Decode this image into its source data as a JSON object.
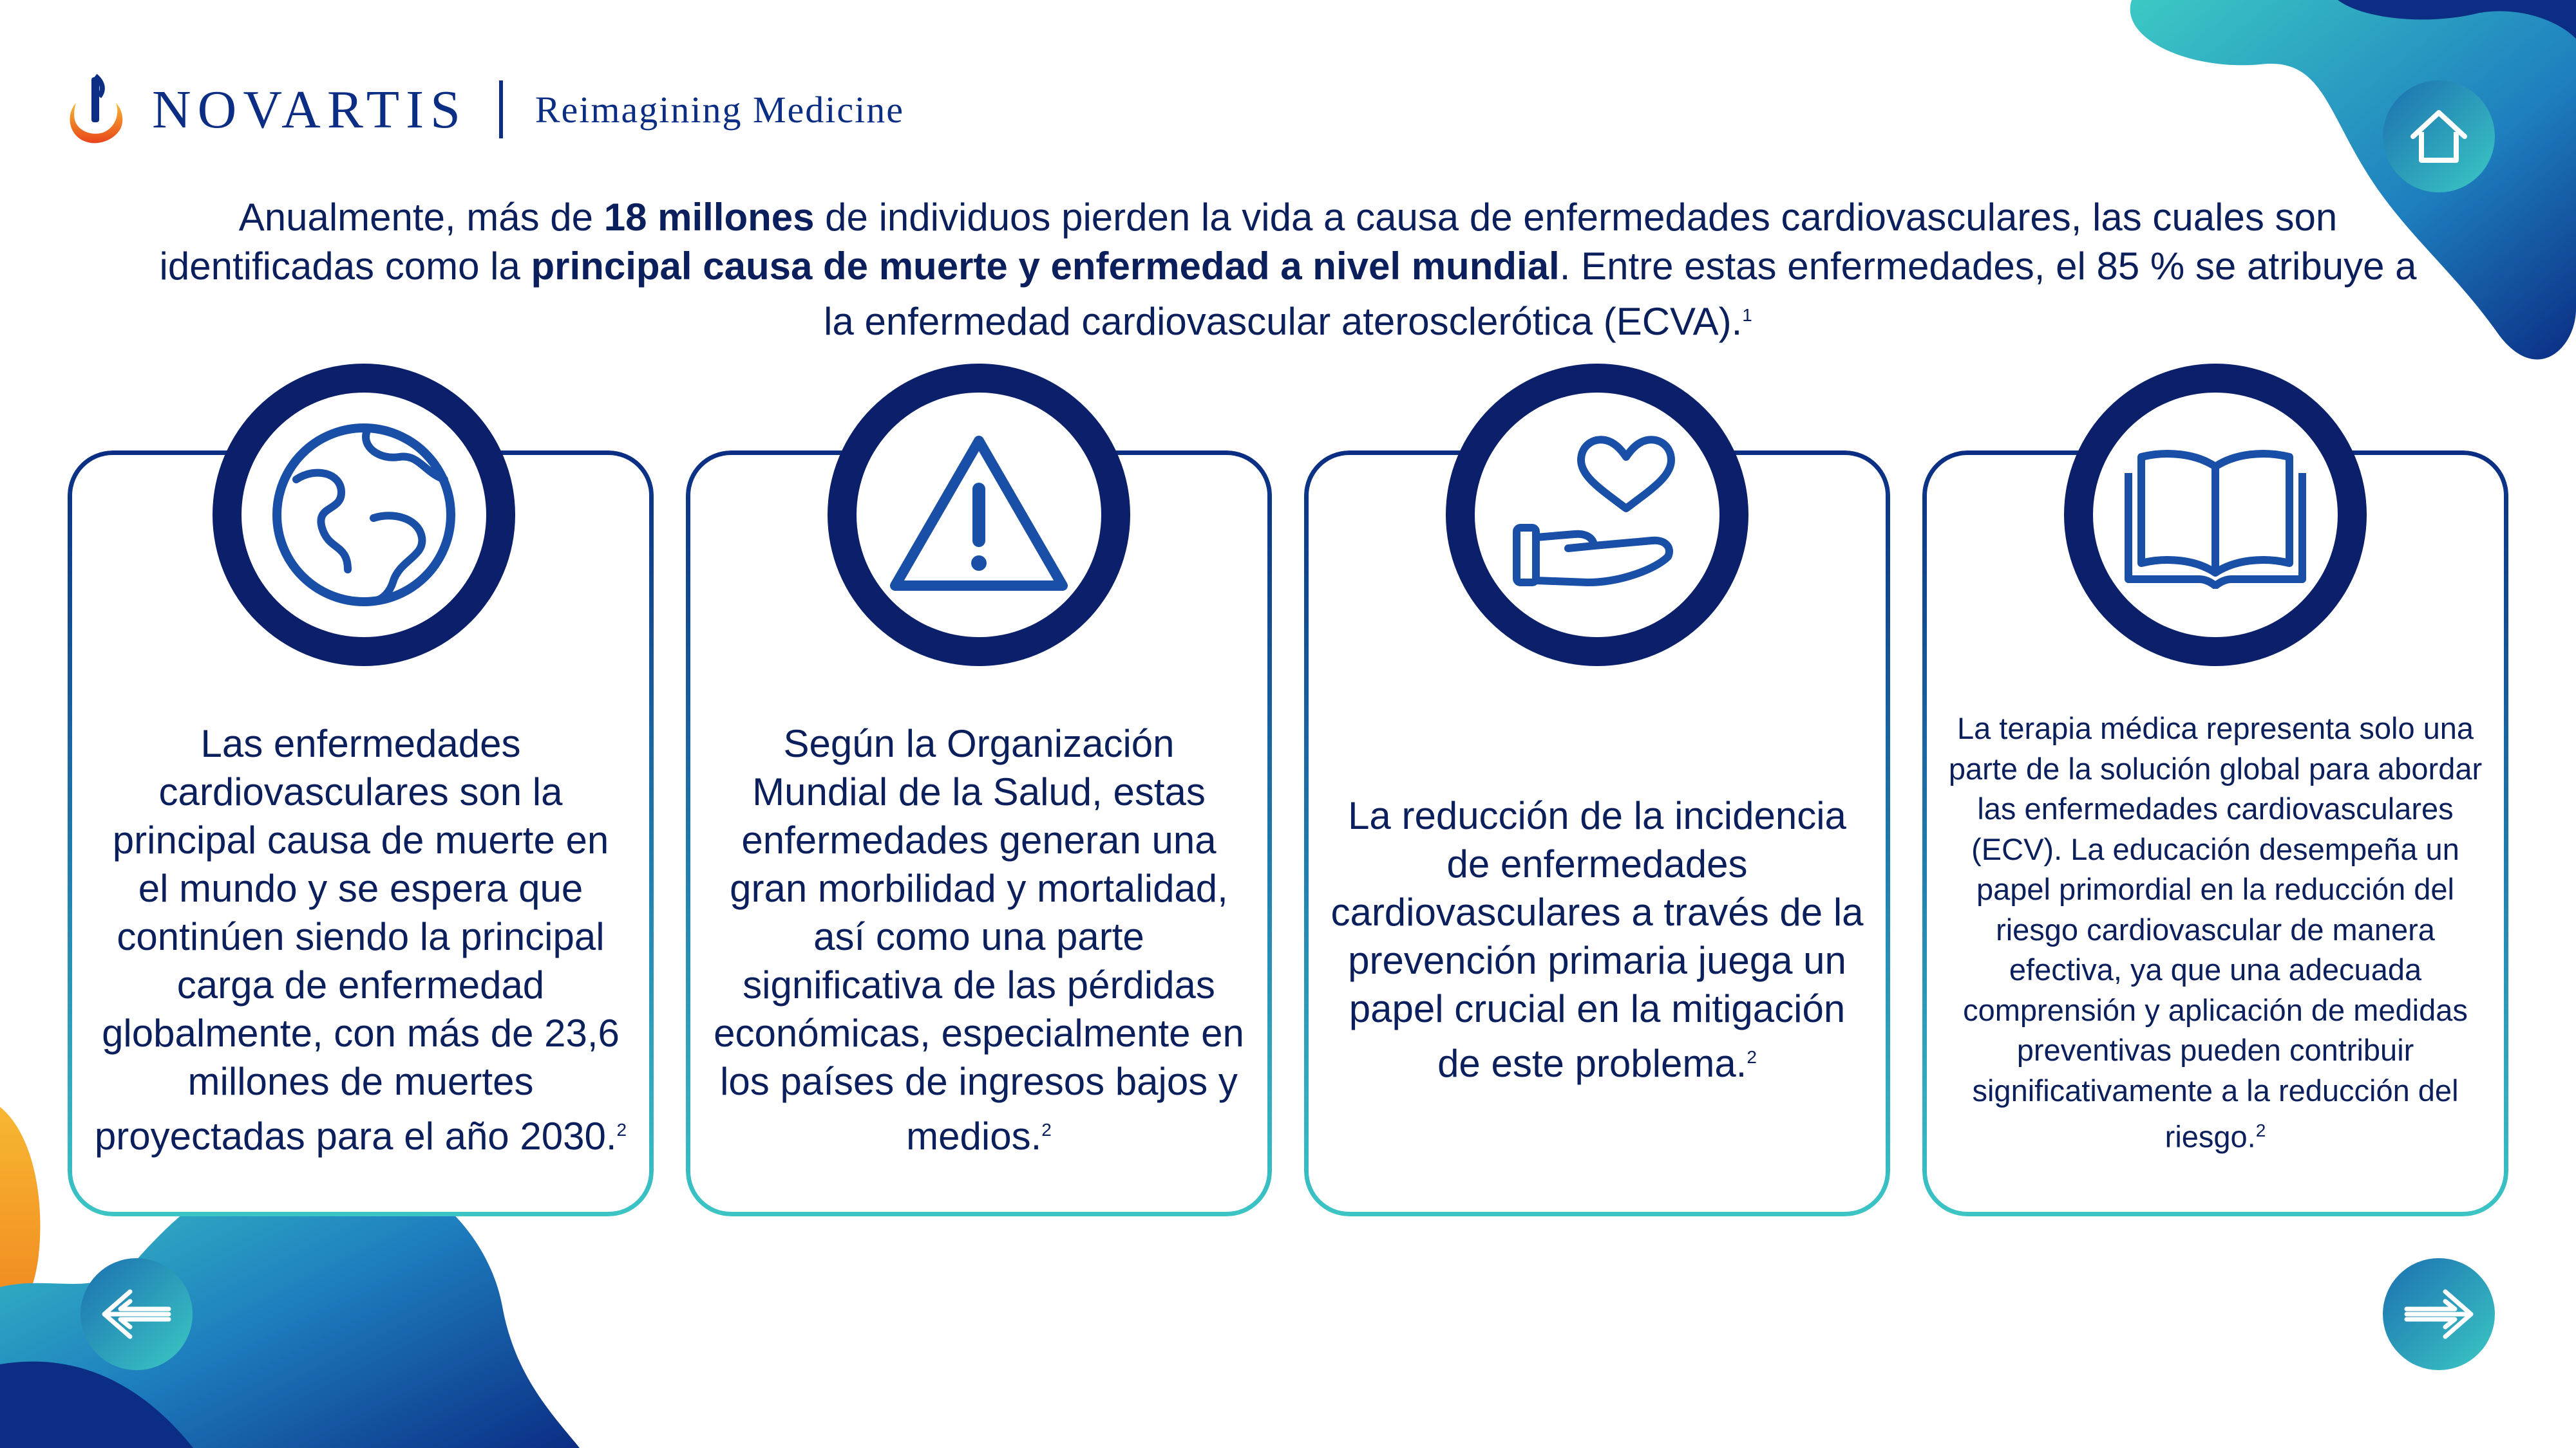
{
  "header": {
    "brand": "NOVARTIS",
    "tagline": "Reimagining Medicine"
  },
  "intro": {
    "p1": "Anualmente, más de ",
    "b1": "18 millones",
    "p2": " de individuos pierden la vida a causa de enfermedades cardiovasculares, las cuales son identificadas como la ",
    "b2": "principal causa de muerte y enfermedad a nivel mundial",
    "p3": ". Entre estas enfermedades, el 85 % se atribuye a la enfermedad cardiovascular aterosclerótica (ECVA).",
    "ref": "1"
  },
  "cards": [
    {
      "icon": "globe-icon",
      "text": "Las enfermedades cardiovasculares son la principal causa de muerte en el mundo y se espera que continúen siendo la principal carga de enfermedad globalmente, con más de 23,6 millones de muertes proyectadas para el año 2030.",
      "ref": "2"
    },
    {
      "icon": "warning-icon",
      "text": "Según la Organización Mundial de la Salud, estas enfermedades generan una gran morbilidad y mortalidad, así como una parte significativa de las pérdidas económicas, especialmente en los países de ingresos bajos y medios.",
      "ref": "2"
    },
    {
      "icon": "heart-hand-icon",
      "text": "La reducción de la incidencia de enfermedades cardiovasculares a través de la prevención primaria juega un papel crucial en la mitigación de este problema.",
      "ref": "2"
    },
    {
      "icon": "open-book-icon",
      "text": "La terapia médica representa solo una parte de la solución global para abordar las enfermedades cardiovasculares (ECV). La educación desempeña un papel primordial en la reducción del riesgo cardiovascular de manera efectiva, ya que una adecuada comprensión y aplicación de medidas preventivas pueden contribuir significativamente a la reducción del riesgo.",
      "ref": "2"
    }
  ],
  "nav": {
    "home_icon": "home-icon",
    "prev_icon": "arrow-left-icon",
    "next_icon": "arrow-right-icon"
  },
  "colors": {
    "navy": "#0b1f6b",
    "brand_blue": "#0b2d83",
    "teal": "#3cc5c5",
    "orange": "#f39c1f"
  }
}
